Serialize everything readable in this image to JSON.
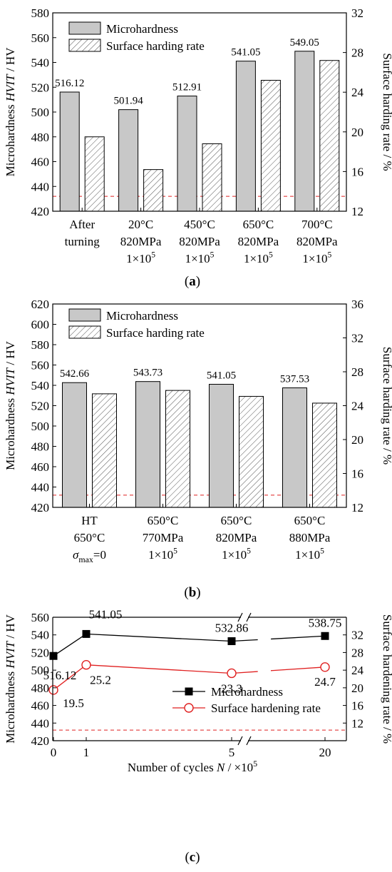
{
  "chart_data": [
    {
      "type": "bar",
      "panel_label": "a",
      "ylabel_prefix": "Microhardness ",
      "ylabel_italic": "HVIT",
      "ylabel_suffix": " / HV",
      "y2label": "Surface harding rate / %",
      "ylim": [
        420,
        580
      ],
      "yticks": [
        420,
        440,
        460,
        480,
        500,
        520,
        540,
        560,
        580
      ],
      "y2lim": [
        12,
        32
      ],
      "y2ticks": [
        12,
        16,
        20,
        24,
        28,
        32
      ],
      "categories": [
        [
          "After",
          "turning"
        ],
        [
          "20°C",
          "820MPa",
          "1×10^5"
        ],
        [
          "450°C",
          "820MPa",
          "1×10^5"
        ],
        [
          "650°C",
          "820MPa",
          "1×10^5"
        ],
        [
          "700°C",
          "820MPa",
          "1×10^5"
        ]
      ],
      "series": [
        {
          "name": "Microhardness",
          "axis": "left",
          "values": [
            516.12,
            501.94,
            512.91,
            541.05,
            549.05
          ],
          "color": "#c8c8c8"
        },
        {
          "name": "Surface harding rate",
          "axis": "right",
          "values": [
            19.5,
            16.2,
            18.8,
            25.2,
            27.2
          ],
          "pattern": "hatch"
        }
      ],
      "value_labels": [
        "516.12",
        "501.94",
        "512.91",
        "541.05",
        "549.05"
      ],
      "reference_line": {
        "value": 432,
        "color": "#e02020",
        "style": "dashed"
      },
      "legend": "top-left"
    },
    {
      "type": "bar",
      "panel_label": "b",
      "ylabel_prefix": "Microhardness ",
      "ylabel_italic": "HVIT",
      "ylabel_suffix": " / HV",
      "y2label": "Surface harding rate / %",
      "ylim": [
        420,
        620
      ],
      "yticks": [
        420,
        440,
        460,
        480,
        500,
        520,
        540,
        560,
        580,
        600,
        620
      ],
      "y2lim": [
        12,
        36
      ],
      "y2ticks": [
        12,
        16,
        20,
        24,
        28,
        32,
        36
      ],
      "categories": [
        [
          "HT",
          "650°C",
          "σmax=0"
        ],
        [
          "650°C",
          "770MPa",
          "1×10^5"
        ],
        [
          "650°C",
          "820MPa",
          "1×10^5"
        ],
        [
          "650°C",
          "880MPa",
          "1×10^5"
        ]
      ],
      "series": [
        {
          "name": "Microhardness",
          "axis": "left",
          "values": [
            542.66,
            543.73,
            541.05,
            537.53
          ],
          "color": "#c8c8c8"
        },
        {
          "name": "Surface harding rate",
          "axis": "right",
          "values": [
            25.4,
            25.8,
            25.1,
            24.3
          ],
          "pattern": "hatch"
        }
      ],
      "value_labels": [
        "542.66",
        "543.73",
        "541.05",
        "537.53"
      ],
      "reference_line": {
        "value": 432,
        "color": "#e02020",
        "style": "dashed"
      },
      "legend": "top-left"
    },
    {
      "type": "line",
      "panel_label": "c",
      "xlabel_prefix": "Number of cycles ",
      "xlabel_italic": "N",
      "xlabel_suffix": " / ×10^5",
      "ylabel_prefix": "Microhardness ",
      "ylabel_italic": "HVIT",
      "ylabel_suffix": " / HV",
      "y2label": "Surface hardening rate / %",
      "x": [
        0,
        1,
        5,
        20
      ],
      "xtick_labels": [
        "0",
        "1",
        "5",
        "20"
      ],
      "axis_break": "between 5 and 20",
      "ylim": [
        420,
        560
      ],
      "yticks": [
        420,
        440,
        460,
        480,
        500,
        520,
        540,
        560
      ],
      "y2lim": [
        8,
        36
      ],
      "y2ticks": [
        12,
        16,
        20,
        24,
        28,
        32
      ],
      "series": [
        {
          "name": "Microhardness",
          "axis": "left",
          "values": [
            516.12,
            541.05,
            532.86,
            538.75
          ],
          "color": "#000000",
          "marker": "filled-square"
        },
        {
          "name": "Surface hardening rate",
          "axis": "right",
          "values": [
            19.5,
            25.2,
            23.3,
            24.7
          ],
          "color": "#e02020",
          "marker": "open-circle"
        }
      ],
      "value_labels_hv": [
        "516.12",
        "541.05",
        "532.86",
        "538.75"
      ],
      "value_labels_rate": [
        "19.5",
        "25.2",
        "23.3",
        "24.7"
      ],
      "reference_line": {
        "value": 432,
        "color": "#e02020",
        "style": "dashed"
      },
      "legend": "bottom-right"
    }
  ]
}
